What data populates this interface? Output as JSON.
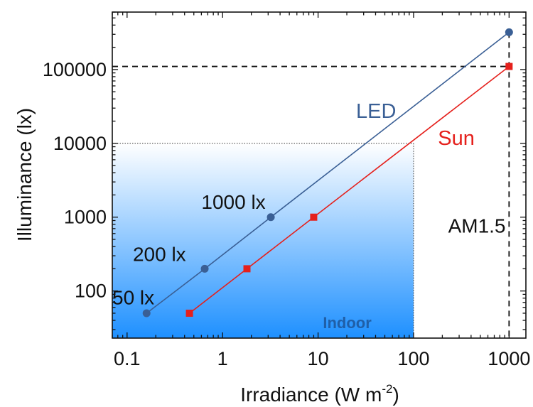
{
  "chart_data": {
    "type": "scatter",
    "title": "",
    "xlabel": "Irradiance (W m",
    "xlabel_sup": "-2",
    "xlabel_close": ")",
    "ylabel": "Illuminance (lx)",
    "xscale": "log",
    "yscale": "log",
    "xlim": [
      0.07,
      1500
    ],
    "ylim": [
      23,
      600000
    ],
    "xticks": [
      0.1,
      1,
      10,
      100,
      1000
    ],
    "xtick_labels": [
      "0.1",
      "1",
      "10",
      "100",
      "1000"
    ],
    "yticks": [
      100,
      1000,
      10000,
      100000
    ],
    "ytick_labels": [
      "100",
      "1000",
      "10000",
      "100000"
    ],
    "series": [
      {
        "name": "LED",
        "color": "#3a5f95",
        "marker": "circle",
        "x": [
          0.16,
          0.65,
          3.2,
          1000
        ],
        "y": [
          50,
          200,
          1000,
          320000
        ]
      },
      {
        "name": "Sun",
        "color": "#e5201c",
        "marker": "square",
        "x": [
          0.45,
          1.8,
          9,
          1000
        ],
        "y": [
          50,
          200,
          1000,
          110000
        ]
      }
    ],
    "indoor_region": {
      "label": "Indoor",
      "x_max": 100,
      "y_max": 10000,
      "color": "#1e90ff",
      "label_color": "#1f5fa8"
    },
    "reference_lines": {
      "x": 1000,
      "y": 110000
    },
    "annotations": [
      {
        "text": "50 lx",
        "x": 0.07,
        "y": 66
      },
      {
        "text": "200 lx",
        "x": 0.115,
        "y": 255
      },
      {
        "text": "1000 lx",
        "x": 0.6,
        "y": 1290
      },
      {
        "text": "AM1.5",
        "x": 230,
        "y": 620
      }
    ]
  }
}
